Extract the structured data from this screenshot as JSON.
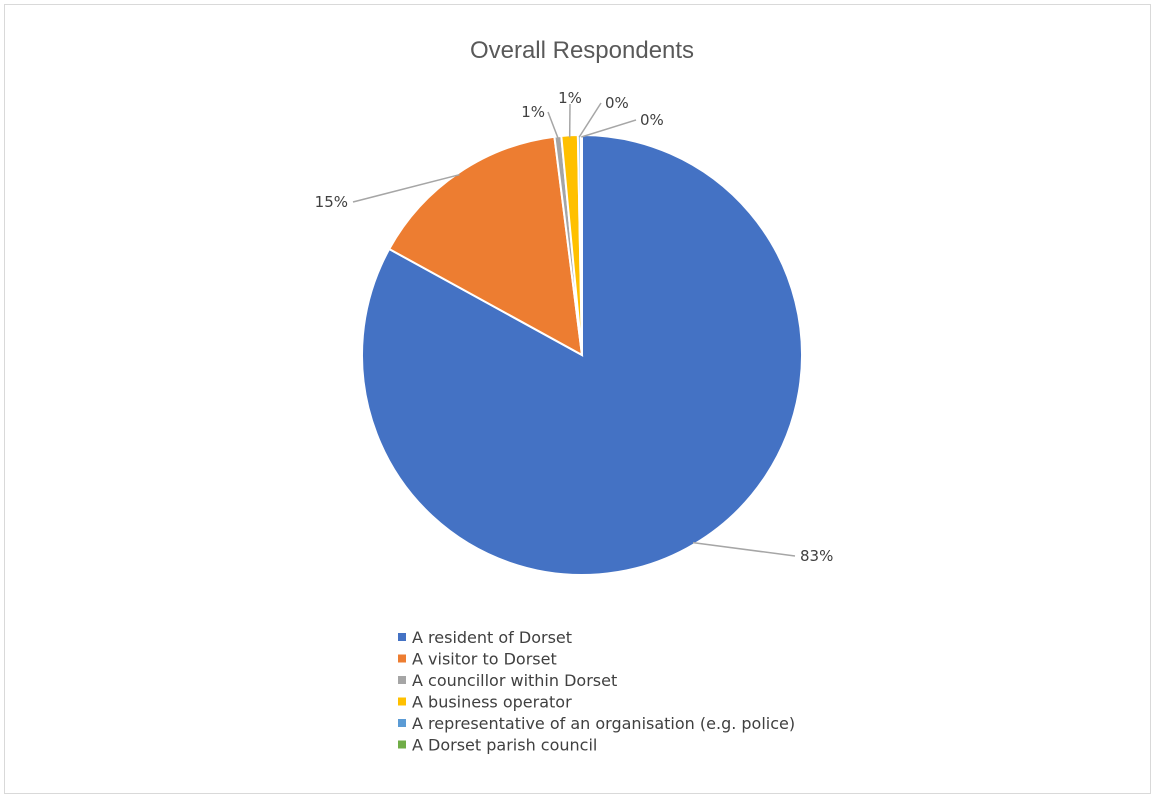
{
  "chart_data": {
    "type": "pie",
    "title": "Overall Respondents",
    "legend_position": "bottom",
    "slices": [
      {
        "name": "A resident of Dorset",
        "value": 83,
        "label": "83%",
        "color": "#4472C4"
      },
      {
        "name": "A visitor to Dorset",
        "value": 15,
        "label": "15%",
        "color": "#ED7D31"
      },
      {
        "name": "A councillor within Dorset",
        "value": 0.5,
        "label": "1%",
        "color": "#A5A5A5"
      },
      {
        "name": "A business operator",
        "value": 1.2,
        "label": "1%",
        "color": "#FFC000"
      },
      {
        "name": "A representative of an organisation (e.g. police)",
        "value": 0.2,
        "label": "0%",
        "color": "#5B9BD5"
      },
      {
        "name": "A Dorset parish council",
        "value": 0.1,
        "label": "0%",
        "color": "#70AD47"
      }
    ]
  }
}
